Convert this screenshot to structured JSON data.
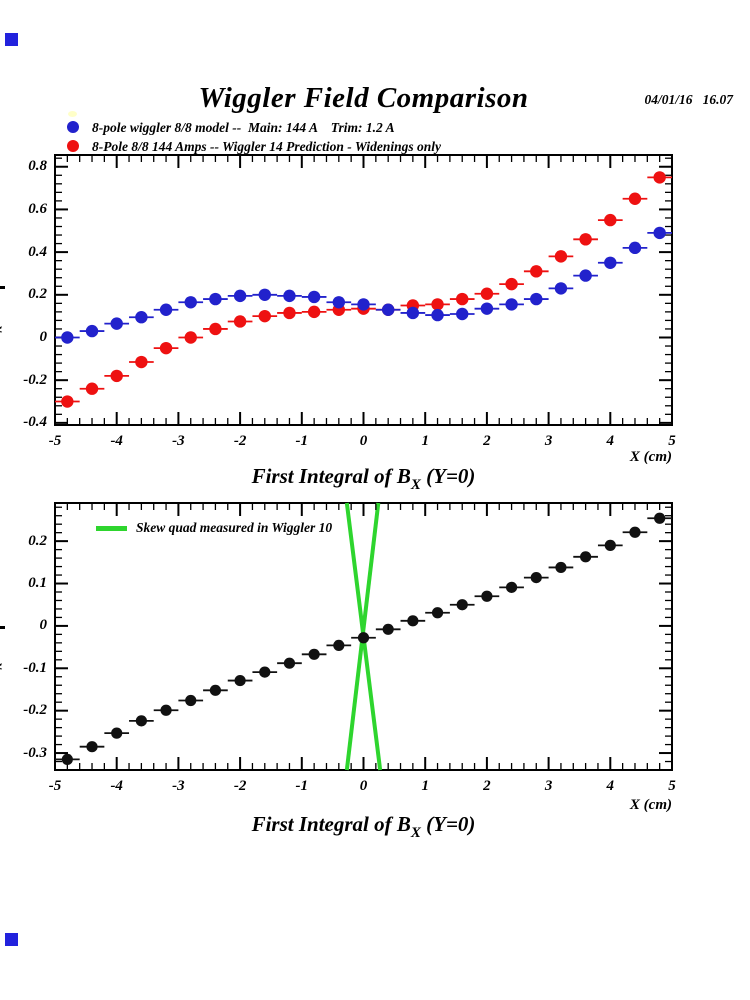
{
  "header": {
    "title": "Wiggler Field Comparison",
    "datetime": "04/01/16   16.07"
  },
  "top_legend": {
    "items": [
      {
        "marker": "filled-circle",
        "color": "#2222cc",
        "label": "8-pole wiggler 8/8 model --  Main: 144 A    Trim: 1.2 A"
      },
      {
        "marker": "filled-circle",
        "color": "#ee1111",
        "label": "8-Pole 8/8 144 Amps -- Wiggler 14 Prediction - Widenings only"
      }
    ]
  },
  "colors": {
    "blue": "#2222cc",
    "red": "#ee1111",
    "green": "#2ed52e",
    "black": "#111111",
    "frame": "#000000",
    "artifact_blue": "#2222dd",
    "artifact_yellow": "#ffffc8"
  },
  "y_axis_fragment": "x",
  "chart_data": [
    {
      "type": "scatter",
      "title": "First Integral of BX (Y=0)",
      "title_parts": {
        "prefix": "First Integral of B",
        "sub": "X",
        "suffix": " (Y=0)"
      },
      "xlabel": "X (cm)",
      "ylabel": "",
      "xlim": [
        -5,
        5
      ],
      "ylim": [
        -0.41,
        0.855
      ],
      "grid": false,
      "xticks": {
        "major": [
          -5,
          -4,
          -3,
          -2,
          -1,
          0,
          1,
          2,
          3,
          4,
          5
        ],
        "labels": [
          "-5",
          "-4",
          "-3",
          "-2",
          "-1",
          "0",
          "1",
          "2",
          "3",
          "4",
          "5"
        ],
        "minor_step": 0.2
      },
      "yticks": {
        "major": [
          0.8,
          0.6,
          0.4,
          0.2,
          0,
          -0.2,
          -0.4
        ],
        "labels": [
          "0.8",
          "0.6",
          "0.4",
          "0.2",
          "0",
          "-0.2",
          "-0.4"
        ],
        "minor_step": 0.04
      },
      "x": [
        -4.8,
        -4.4,
        -4,
        -3.6,
        -3.2,
        -2.8,
        -2.4,
        -2,
        -1.6,
        -1.2,
        -0.8,
        -0.4,
        0,
        0.4,
        0.8,
        1.2,
        1.6,
        2,
        2.4,
        2.8,
        3.2,
        3.6,
        4,
        4.4,
        4.8
      ],
      "xerr": 0.2,
      "series": [
        {
          "name": "8-pole wiggler 8/8 model --  Main: 144 A    Trim: 1.2 A",
          "color": "#2222cc",
          "values": [
            0,
            0.03,
            0.065,
            0.095,
            0.13,
            0.165,
            0.18,
            0.195,
            0.2,
            0.195,
            0.19,
            0.165,
            0.155,
            0.13,
            0.115,
            0.105,
            0.11,
            0.135,
            0.155,
            0.18,
            0.23,
            0.29,
            0.35,
            0.42,
            0.49
          ]
        },
        {
          "name": "8-Pole 8/8 144 Amps -- Wiggler 14 Prediction - Widenings only",
          "color": "#ee1111",
          "values": [
            -0.3,
            -0.24,
            -0.18,
            -0.115,
            -0.05,
            0,
            0.04,
            0.075,
            0.1,
            0.115,
            0.12,
            0.13,
            0.135,
            0.13,
            0.15,
            0.155,
            0.18,
            0.205,
            0.25,
            0.31,
            0.38,
            0.46,
            0.55,
            0.65,
            0.75
          ]
        }
      ]
    },
    {
      "type": "scatter",
      "title": "First Integral of BX (Y=0)",
      "title_parts": {
        "prefix": "First Integral of B",
        "sub": "X",
        "suffix": " (Y=0)"
      },
      "xlabel": "X (cm)",
      "ylabel": "",
      "xlim": [
        -5,
        5
      ],
      "ylim": [
        -0.34,
        0.29
      ],
      "grid": false,
      "xticks": {
        "major": [
          -5,
          -4,
          -3,
          -2,
          -1,
          0,
          1,
          2,
          3,
          4,
          5
        ],
        "labels": [
          "-5",
          "-4",
          "-3",
          "-2",
          "-1",
          "0",
          "1",
          "2",
          "3",
          "4",
          "5"
        ],
        "minor_step": 0.2
      },
      "yticks": {
        "major": [
          0.2,
          0.1,
          0,
          -0.1,
          -0.2,
          -0.3
        ],
        "labels": [
          "0.2",
          "0.1",
          "0",
          "-0.1",
          "-0.2",
          "-0.3"
        ],
        "minor_step": 0.02
      },
      "x": [
        -4.8,
        -4.4,
        -4,
        -3.6,
        -3.2,
        -2.8,
        -2.4,
        -2,
        -1.6,
        -1.2,
        -0.8,
        -0.4,
        0,
        0.4,
        0.8,
        1.2,
        1.6,
        2,
        2.4,
        2.8,
        3.2,
        3.6,
        4,
        4.4,
        4.8
      ],
      "xerr": 0.2,
      "series": [
        {
          "name": "",
          "color": "#111111",
          "values": [
            -0.315,
            -0.285,
            -0.253,
            -0.224,
            -0.199,
            -0.176,
            -0.152,
            -0.129,
            -0.109,
            -0.088,
            -0.067,
            -0.046,
            -0.028,
            -0.008,
            0.012,
            0.031,
            0.05,
            0.07,
            0.091,
            0.114,
            0.138,
            0.163,
            0.19,
            0.221,
            0.254
          ]
        }
      ],
      "legend": {
        "label": "Skew quad measured in Wiggler 10",
        "line_color": "#2ed52e"
      },
      "line_color": "#2ed52e",
      "lines": [
        {
          "x1": -0.27,
          "y1": 0.29,
          "x2": 0.27,
          "y2": -0.34
        },
        {
          "x1": 0.24,
          "y1": 0.29,
          "x2": -0.27,
          "y2": -0.34
        }
      ]
    }
  ]
}
